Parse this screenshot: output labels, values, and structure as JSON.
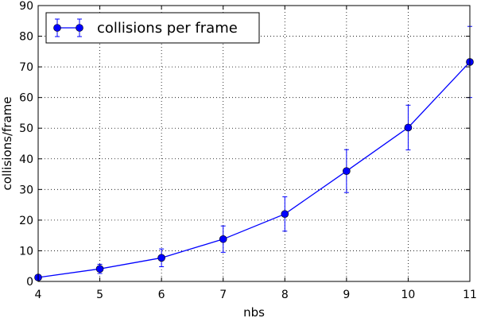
{
  "chart_data": {
    "type": "line",
    "title": "",
    "xlabel": "nbs",
    "ylabel": "collisions/frame",
    "xlim": [
      4,
      11
    ],
    "ylim": [
      0,
      90
    ],
    "x_ticks": [
      "4",
      "5",
      "6",
      "7",
      "8",
      "9",
      "10",
      "11"
    ],
    "y_ticks": [
      "0",
      "10",
      "20",
      "30",
      "40",
      "50",
      "60",
      "70",
      "80",
      "90"
    ],
    "grid": true,
    "legend": "top-left",
    "series": [
      {
        "name": "collisions per frame",
        "color": "#0000ff",
        "marker": "circle",
        "x": [
          4,
          5,
          6,
          7,
          8,
          9,
          10,
          11
        ],
        "y": [
          1.3,
          4.1,
          7.7,
          13.8,
          22.0,
          36.0,
          50.2,
          71.6
        ],
        "err_low": [
          0.8,
          1.5,
          2.9,
          4.3,
          5.6,
          7.0,
          7.3,
          11.6
        ],
        "err_high": [
          0.8,
          1.5,
          2.9,
          4.3,
          5.6,
          7.0,
          7.3,
          11.6
        ]
      }
    ]
  }
}
